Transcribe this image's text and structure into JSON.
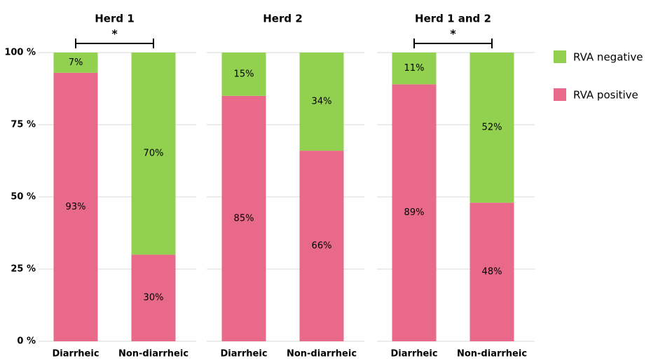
{
  "chart_data": [
    {
      "type": "bar",
      "stacked": true,
      "title": "Herd 1",
      "annotation": "*",
      "categories": [
        "Diarrheic",
        "Non-diarrheic"
      ],
      "series": [
        {
          "name": "RVA positive",
          "color": "#e8698a",
          "values": [
            93,
            30
          ],
          "value_labels": [
            "93%",
            "30%"
          ]
        },
        {
          "name": "RVA negative",
          "color": "#92d050",
          "values": [
            7,
            70
          ],
          "value_labels": [
            "7%",
            "70%"
          ]
        }
      ],
      "ylim": [
        0,
        100
      ],
      "yticks": [
        {
          "value": 0,
          "label": "0 %"
        },
        {
          "value": 25,
          "label": "25 %"
        },
        {
          "value": 50,
          "label": "50 %"
        },
        {
          "value": 75,
          "label": "75 %"
        },
        {
          "value": 100,
          "label": "100 %"
        }
      ],
      "grid": true,
      "legend": "right"
    },
    {
      "type": "bar",
      "stacked": true,
      "title": "Herd 2",
      "categories": [
        "Diarrheic",
        "Non-diarrheic"
      ],
      "series": [
        {
          "name": "RVA positive",
          "color": "#e8698a",
          "values": [
            85,
            66
          ],
          "value_labels": [
            "85%",
            "66%"
          ]
        },
        {
          "name": "RVA negative",
          "color": "#92d050",
          "values": [
            15,
            34
          ],
          "value_labels": [
            "15%",
            "34%"
          ]
        }
      ],
      "ylim": [
        0,
        100
      ],
      "grid": true
    },
    {
      "type": "bar",
      "stacked": true,
      "title": "Herd 1 and 2",
      "annotation": "*",
      "categories": [
        "Diarrheic",
        "Non-diarrheic"
      ],
      "series": [
        {
          "name": "RVA positive",
          "color": "#e8698a",
          "values": [
            89,
            48
          ],
          "value_labels": [
            "89%",
            "48%"
          ]
        },
        {
          "name": "RVA negative",
          "color": "#92d050",
          "values": [
            11,
            52
          ],
          "value_labels": [
            "11%",
            "52%"
          ]
        }
      ],
      "ylim": [
        0,
        100
      ],
      "grid": true
    }
  ]
}
